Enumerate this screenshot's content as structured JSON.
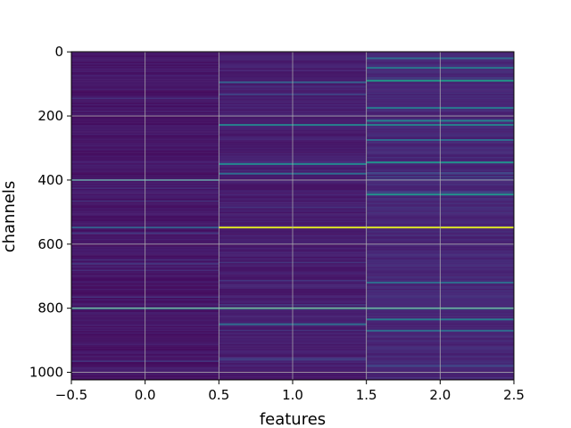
{
  "chart_data": {
    "type": "heatmap",
    "title": "",
    "xlabel": "features",
    "ylabel": "channels",
    "xlim": [
      -0.5,
      2.5
    ],
    "ylim": [
      1023.5,
      -0.5
    ],
    "x_ticks": [
      -0.5,
      0.0,
      0.5,
      1.0,
      1.5,
      2.0,
      2.5
    ],
    "x_tick_labels": [
      "−0.5",
      "0.0",
      "0.5",
      "1.0",
      "1.5",
      "2.0",
      "2.5"
    ],
    "y_ticks": [
      0,
      200,
      400,
      600,
      800,
      1000
    ],
    "y_tick_labels": [
      "0",
      "200",
      "400",
      "600",
      "800",
      "1000"
    ],
    "grid": true,
    "colormap": "viridis",
    "columns": 3,
    "rows": 1024,
    "base_levels": [
      0.06,
      0.08,
      0.11
    ],
    "highlights": [
      {
        "column": 0,
        "channel": 400,
        "value": 0.35
      },
      {
        "column": 0,
        "channel": 548,
        "value": 0.3
      },
      {
        "column": 0,
        "channel": 800,
        "value": 0.55
      },
      {
        "column": 1,
        "channel": 95,
        "value": 0.3
      },
      {
        "column": 1,
        "channel": 228,
        "value": 0.45
      },
      {
        "column": 1,
        "channel": 350,
        "value": 0.45
      },
      {
        "column": 1,
        "channel": 380,
        "value": 0.35
      },
      {
        "column": 1,
        "channel": 548,
        "value": 0.95
      },
      {
        "column": 1,
        "channel": 800,
        "value": 0.6
      },
      {
        "column": 1,
        "channel": 850,
        "value": 0.35
      },
      {
        "column": 2,
        "channel": 20,
        "value": 0.35
      },
      {
        "column": 2,
        "channel": 50,
        "value": 0.4
      },
      {
        "column": 2,
        "channel": 90,
        "value": 0.55
      },
      {
        "column": 2,
        "channel": 175,
        "value": 0.4
      },
      {
        "column": 2,
        "channel": 215,
        "value": 0.45
      },
      {
        "column": 2,
        "channel": 228,
        "value": 0.45
      },
      {
        "column": 2,
        "channel": 275,
        "value": 0.35
      },
      {
        "column": 2,
        "channel": 345,
        "value": 0.5
      },
      {
        "column": 2,
        "channel": 445,
        "value": 0.5
      },
      {
        "column": 2,
        "channel": 548,
        "value": 0.95
      },
      {
        "column": 2,
        "channel": 720,
        "value": 0.35
      },
      {
        "column": 2,
        "channel": 800,
        "value": 0.55
      },
      {
        "column": 2,
        "channel": 835,
        "value": 0.4
      },
      {
        "column": 2,
        "channel": 870,
        "value": 0.35
      }
    ]
  }
}
